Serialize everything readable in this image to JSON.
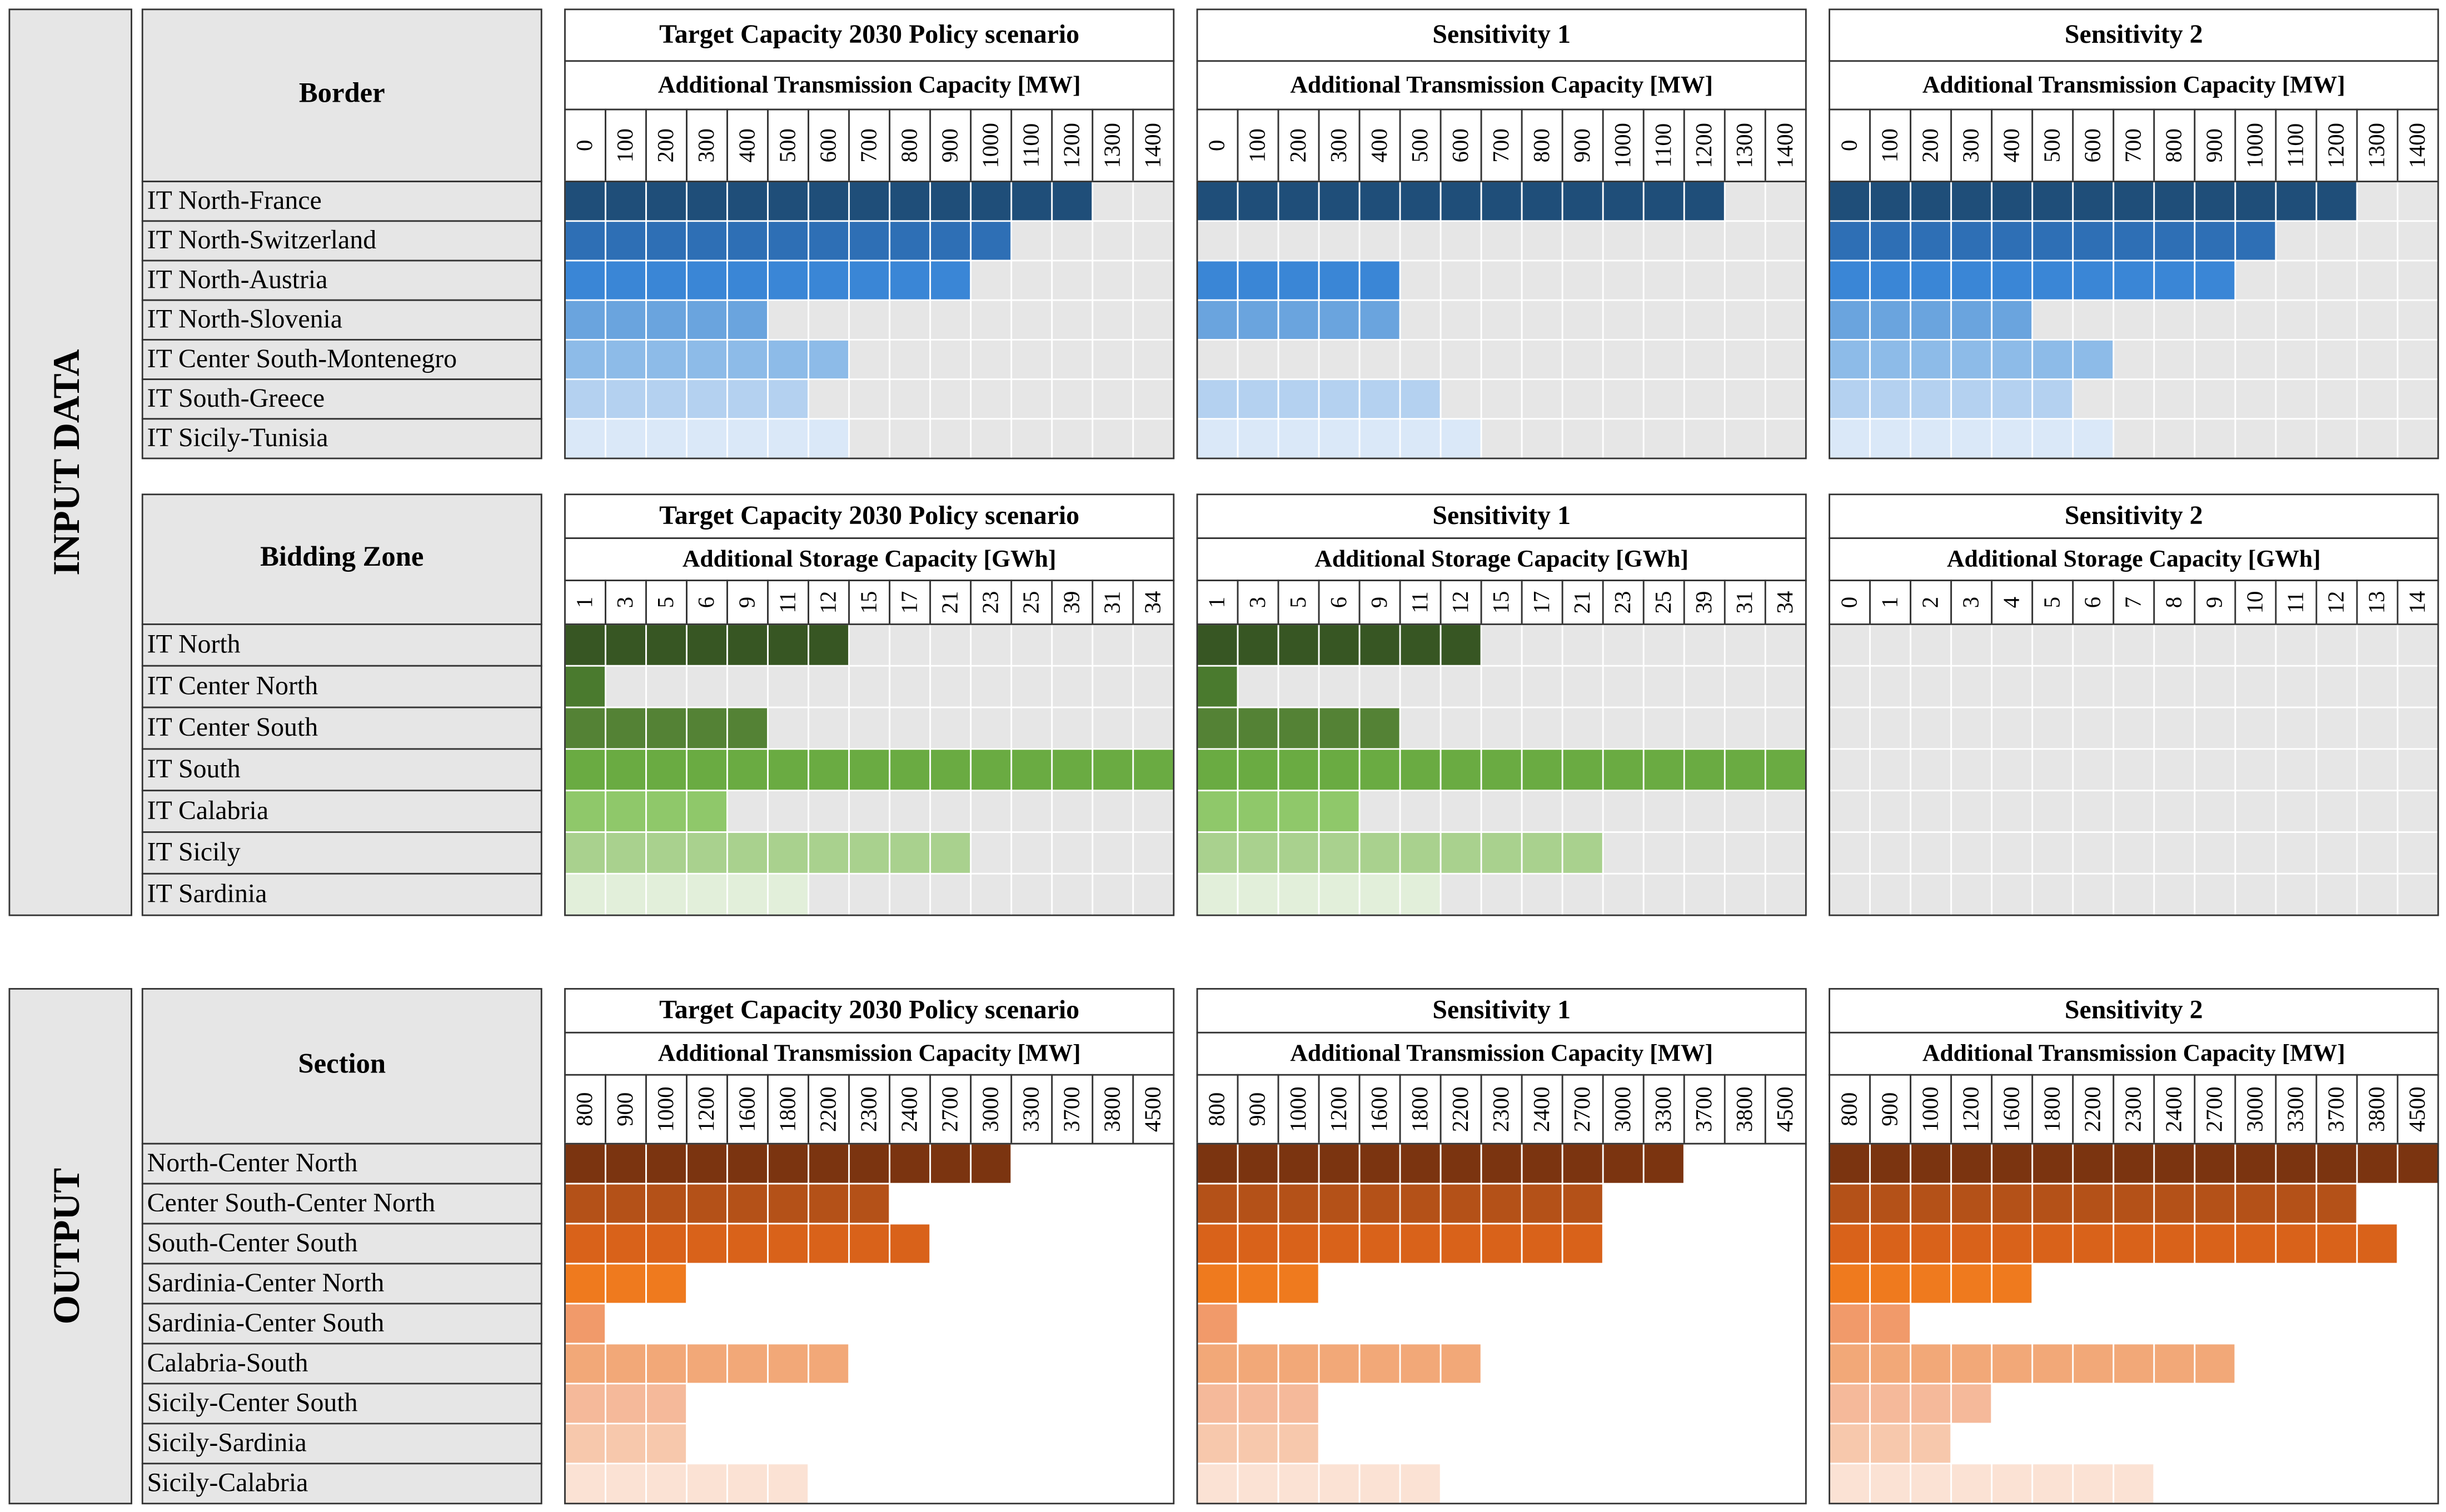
{
  "side_labels": [
    "INPUT DATA",
    "OUTPUT"
  ],
  "sections": [
    {
      "header": "Border",
      "rows": [
        "IT North-France",
        "IT North-Switzerland",
        "IT North-Austria",
        "IT North-Slovenia",
        "IT Center South-Montenegro",
        "IT South-Greece",
        "IT Sicily-Tunisia"
      ],
      "row_colors": [
        "#1f4e79",
        "#2e6fb5",
        "#3a86d6",
        "#6aa4de",
        "#8dbbe8",
        "#b4d1f0",
        "#dae8f8"
      ],
      "empty_color": "#e6e6e6",
      "panels": [
        {
          "title": "Target Capacity 2030 Policy scenario",
          "subtitle": "Additional Transmission Capacity [MW]",
          "columns": [
            0,
            100,
            200,
            300,
            400,
            500,
            600,
            700,
            800,
            900,
            1000,
            1100,
            1200,
            1300,
            1400
          ],
          "filled": [
            13,
            11,
            10,
            5,
            7,
            6,
            7
          ]
        },
        {
          "title": "Sensitivity 1",
          "subtitle": "Additional Transmission Capacity [MW]",
          "columns": [
            0,
            100,
            200,
            300,
            400,
            500,
            600,
            700,
            800,
            900,
            1000,
            1100,
            1200,
            1300,
            1400
          ],
          "filled": [
            13,
            0,
            5,
            5,
            0,
            6,
            7
          ]
        },
        {
          "title": "Sensitivity 2",
          "subtitle": "Additional Transmission Capacity [MW]",
          "columns": [
            0,
            100,
            200,
            300,
            400,
            500,
            600,
            700,
            800,
            900,
            1000,
            1100,
            1200,
            1300,
            1400
          ],
          "filled": [
            13,
            11,
            10,
            5,
            7,
            6,
            7
          ]
        }
      ]
    },
    {
      "header": "Bidding Zone",
      "rows": [
        "IT North",
        "IT Center North",
        "IT Center South",
        "IT South",
        "IT Calabria",
        "IT Sicily",
        "IT Sardinia"
      ],
      "row_colors": [
        "#375623",
        "#4a7a2e",
        "#548235",
        "#6aab42",
        "#8fc86a",
        "#a9d18e",
        "#e2efda"
      ],
      "empty_color": "#e6e6e6",
      "panels": [
        {
          "title": "Target Capacity 2030 Policy scenario",
          "subtitle": "Additional Storage Capacity [GWh]",
          "columns": [
            1,
            3,
            5,
            6,
            9,
            11,
            12,
            15,
            17,
            21,
            23,
            25,
            39,
            31,
            34
          ],
          "filled": [
            7,
            1,
            5,
            15,
            4,
            10,
            6
          ]
        },
        {
          "title": "Sensitivity 1",
          "subtitle": "Additional Storage Capacity [GWh]",
          "columns": [
            1,
            3,
            5,
            6,
            9,
            11,
            12,
            15,
            17,
            21,
            23,
            25,
            39,
            31,
            34
          ],
          "filled": [
            7,
            1,
            5,
            15,
            4,
            10,
            6
          ]
        },
        {
          "title": "Sensitivity 2",
          "subtitle": "Additional Storage Capacity [GWh]",
          "columns": [
            0,
            1,
            2,
            3,
            4,
            5,
            6,
            7,
            8,
            9,
            10,
            11,
            12,
            13,
            14
          ],
          "filled": [
            0,
            0,
            0,
            0,
            0,
            0,
            0
          ]
        }
      ]
    },
    {
      "header": "Section",
      "rows": [
        "North-Center North",
        "Center South-Center North",
        "South-Center South",
        "Sardinia-Center North",
        "Sardinia-Center South",
        "Calabria-South",
        "Sicily-Center South",
        "Sicily-Sardinia",
        "Sicily-Calabria"
      ],
      "row_colors": [
        "#7b3410",
        "#b45118",
        "#d9621a",
        "#ef7a1e",
        "#f19a6a",
        "#f2a878",
        "#f5b99a",
        "#f7c8ac",
        "#fbe2d4"
      ],
      "empty_color": "#ffffff",
      "panels": [
        {
          "title": "Target Capacity 2030 Policy scenario",
          "subtitle": "Additional Transmission Capacity [MW]",
          "columns": [
            800,
            900,
            1000,
            1200,
            1600,
            1800,
            2200,
            2300,
            2400,
            2700,
            3000,
            3300,
            3700,
            3800,
            4500
          ],
          "filled": [
            11,
            8,
            9,
            3,
            1,
            7,
            3,
            3,
            6
          ]
        },
        {
          "title": "Sensitivity 1",
          "subtitle": "Additional Transmission Capacity [MW]",
          "columns": [
            800,
            900,
            1000,
            1200,
            1600,
            1800,
            2200,
            2300,
            2400,
            2700,
            3000,
            3300,
            3700,
            3800,
            4500
          ],
          "filled": [
            12,
            10,
            10,
            3,
            1,
            7,
            3,
            3,
            6
          ]
        },
        {
          "title": "Sensitivity 2",
          "subtitle": "Additional Transmission Capacity [MW]",
          "columns": [
            800,
            900,
            1000,
            1200,
            1600,
            1800,
            2200,
            2300,
            2400,
            2700,
            3000,
            3300,
            3700,
            3800,
            4500
          ],
          "filled": [
            15,
            13,
            14,
            5,
            2,
            10,
            4,
            3,
            8
          ]
        }
      ]
    }
  ]
}
